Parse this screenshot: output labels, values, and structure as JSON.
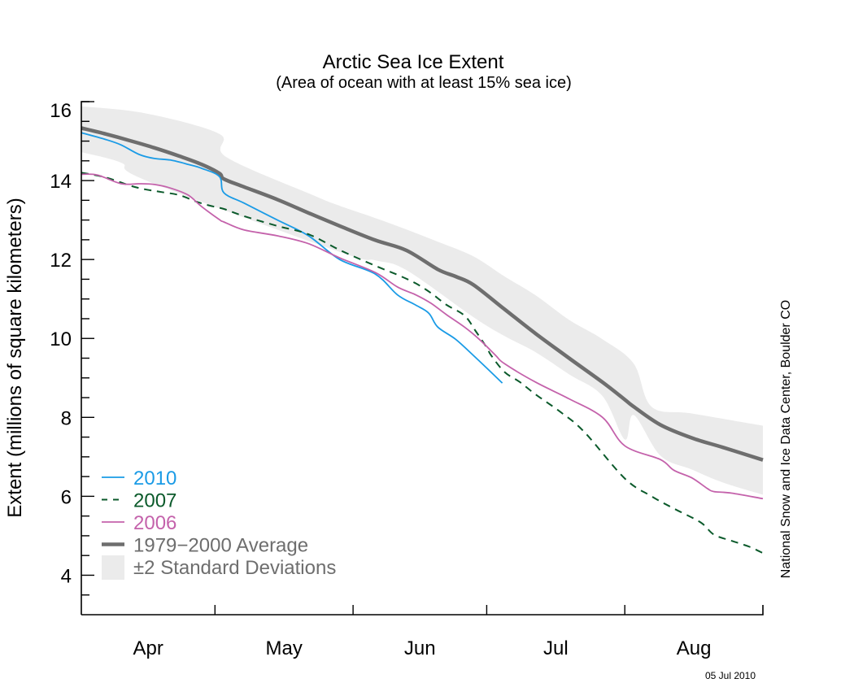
{
  "chart_data": {
    "type": "line",
    "title": "Arctic Sea Ice Extent",
    "subtitle": "(Area of ocean with at least 15% sea ice)",
    "xlabel": "",
    "ylabel": "Extent (millions of square kilometers)",
    "x_units": "days since Apr 1",
    "xlim": [
      0,
      153
    ],
    "ylim": [
      3,
      16
    ],
    "yticks_major": [
      4,
      6,
      8,
      10,
      12,
      14,
      16
    ],
    "ytick_minor_step": 0.5,
    "x_month_ticks": [
      0,
      30,
      61,
      91,
      122,
      153
    ],
    "x_month_labels": [
      {
        "label": "Apr",
        "day": 15
      },
      {
        "label": "May",
        "day": 45.5
      },
      {
        "label": "Jun",
        "day": 76
      },
      {
        "label": "Jul",
        "day": 106.5
      },
      {
        "label": "Aug",
        "day": 137.5
      }
    ],
    "grid": false,
    "legend_position": "bottom-left",
    "band": {
      "name": "±2 Standard Deviations",
      "color": "#ebebeb",
      "upper": [
        [
          0,
          15.88
        ],
        [
          14.6,
          15.7
        ],
        [
          31,
          15.18
        ],
        [
          32.5,
          14.6
        ],
        [
          52,
          13.63
        ],
        [
          58,
          13.36
        ],
        [
          66,
          13.05
        ],
        [
          73,
          12.76
        ],
        [
          80,
          12.45
        ],
        [
          88,
          12.08
        ],
        [
          95,
          11.57
        ],
        [
          102,
          11.09
        ],
        [
          109.5,
          10.47
        ],
        [
          117,
          9.98
        ],
        [
          124,
          9.36
        ],
        [
          128,
          8.27
        ],
        [
          137,
          8.1
        ],
        [
          153,
          7.79
        ]
      ],
      "lower": [
        [
          0,
          14.72
        ],
        [
          9,
          14.45
        ],
        [
          14.6,
          14.0
        ],
        [
          58,
          12.19
        ],
        [
          66,
          11.98
        ],
        [
          73,
          11.73
        ],
        [
          88,
          10.54
        ],
        [
          95,
          10.06
        ],
        [
          102,
          9.65
        ],
        [
          109.5,
          9.09
        ],
        [
          117,
          8.54
        ],
        [
          122,
          7.44
        ],
        [
          124,
          8.06
        ],
        [
          130,
          7.03
        ],
        [
          137,
          6.68
        ],
        [
          144,
          6.35
        ],
        [
          153,
          6.04
        ]
      ]
    },
    "series": [
      {
        "name": "1979−2000 Average",
        "color": "#6e6e6e",
        "style": "solid-thick",
        "points": [
          [
            0,
            15.33
          ],
          [
            5.5,
            15.18
          ],
          [
            11,
            15.01
          ],
          [
            16.4,
            14.83
          ],
          [
            22,
            14.62
          ],
          [
            27,
            14.41
          ],
          [
            31,
            14.18
          ],
          [
            32,
            14.04
          ],
          [
            36.5,
            13.84
          ],
          [
            44,
            13.52
          ],
          [
            51,
            13.18
          ],
          [
            58,
            12.85
          ],
          [
            66,
            12.49
          ],
          [
            73,
            12.23
          ],
          [
            80,
            11.75
          ],
          [
            84,
            11.57
          ],
          [
            88,
            11.36
          ],
          [
            95,
            10.74
          ],
          [
            102,
            10.12
          ],
          [
            109.5,
            9.5
          ],
          [
            117,
            8.89
          ],
          [
            122,
            8.45
          ],
          [
            124,
            8.27
          ],
          [
            130,
            7.81
          ],
          [
            137,
            7.48
          ],
          [
            144,
            7.24
          ],
          [
            153,
            6.92
          ]
        ]
      },
      {
        "name": "2010",
        "color": "#1a9be6",
        "style": "solid",
        "points": [
          [
            0,
            15.21
          ],
          [
            5.5,
            15.04
          ],
          [
            9,
            14.9
          ],
          [
            13,
            14.66
          ],
          [
            16.4,
            14.56
          ],
          [
            20,
            14.52
          ],
          [
            24,
            14.41
          ],
          [
            27,
            14.31
          ],
          [
            31,
            14.1
          ],
          [
            32,
            13.69
          ],
          [
            36.5,
            13.43
          ],
          [
            44,
            13.0
          ],
          [
            51,
            12.6
          ],
          [
            58,
            12.0
          ],
          [
            66,
            11.63
          ],
          [
            71,
            11.1
          ],
          [
            75,
            10.85
          ],
          [
            78,
            10.64
          ],
          [
            80,
            10.29
          ],
          [
            84,
            9.98
          ],
          [
            88,
            9.57
          ],
          [
            91,
            9.25
          ],
          [
            94.5,
            8.87
          ]
        ]
      },
      {
        "name": "2007",
        "color": "#0b5a2b",
        "style": "dashed",
        "points": [
          [
            0,
            14.2
          ],
          [
            5.5,
            14.08
          ],
          [
            11,
            13.87
          ],
          [
            14.6,
            13.77
          ],
          [
            18,
            13.71
          ],
          [
            22,
            13.63
          ],
          [
            26,
            13.46
          ],
          [
            29,
            13.36
          ],
          [
            32,
            13.28
          ],
          [
            36.5,
            13.1
          ],
          [
            44,
            12.85
          ],
          [
            51,
            12.64
          ],
          [
            58,
            12.24
          ],
          [
            66,
            11.84
          ],
          [
            71,
            11.61
          ],
          [
            75,
            11.4
          ],
          [
            78.5,
            11.15
          ],
          [
            82,
            10.85
          ],
          [
            86,
            10.58
          ],
          [
            88.5,
            10.19
          ],
          [
            91,
            9.77
          ],
          [
            92,
            9.57
          ],
          [
            95,
            9.15
          ],
          [
            98.5,
            8.89
          ],
          [
            102,
            8.58
          ],
          [
            108,
            8.1
          ],
          [
            113,
            7.62
          ],
          [
            122,
            6.45
          ],
          [
            128,
            6.0
          ],
          [
            133,
            5.69
          ],
          [
            139,
            5.34
          ],
          [
            142,
            5.03
          ],
          [
            146,
            4.87
          ],
          [
            150,
            4.72
          ],
          [
            153,
            4.56
          ]
        ]
      },
      {
        "name": "2006",
        "color": "#c462ab",
        "style": "solid",
        "points": [
          [
            0,
            14.16
          ],
          [
            3.6,
            14.14
          ],
          [
            9,
            13.92
          ],
          [
            13,
            13.92
          ],
          [
            16.4,
            13.9
          ],
          [
            20,
            13.81
          ],
          [
            24,
            13.63
          ],
          [
            27,
            13.34
          ],
          [
            31,
            13.01
          ],
          [
            32,
            12.95
          ],
          [
            36.5,
            12.75
          ],
          [
            44,
            12.6
          ],
          [
            51,
            12.4
          ],
          [
            58,
            12.04
          ],
          [
            66,
            11.67
          ],
          [
            71,
            11.3
          ],
          [
            75,
            11.11
          ],
          [
            78.5,
            10.89
          ],
          [
            82,
            10.6
          ],
          [
            86,
            10.29
          ],
          [
            89.5,
            9.96
          ],
          [
            93,
            9.57
          ],
          [
            95,
            9.36
          ],
          [
            102,
            8.89
          ],
          [
            109.5,
            8.47
          ],
          [
            117,
            8.0
          ],
          [
            122,
            7.28
          ],
          [
            130,
            6.93
          ],
          [
            133,
            6.66
          ],
          [
            137,
            6.47
          ],
          [
            140.5,
            6.2
          ],
          [
            142,
            6.12
          ],
          [
            146,
            6.08
          ],
          [
            153,
            5.94
          ]
        ]
      }
    ],
    "legend": [
      {
        "label": "2010",
        "color": "#1a9be6",
        "swatch": "line"
      },
      {
        "label": "2007",
        "color": "#0b5a2b",
        "swatch": "dashed"
      },
      {
        "label": "2006",
        "color": "#c462ab",
        "swatch": "line"
      },
      {
        "label": "1979−2000 Average",
        "color": "#6e6e6e",
        "swatch": "thick-line"
      },
      {
        "label": "±2 Standard Deviations",
        "color": "#ebebeb",
        "swatch": "box",
        "text_color": "#6e6e6e"
      }
    ],
    "annotations": {
      "credit": "National Snow and Ice Data Center, Boulder CO",
      "date_stamp": "05 Jul 2010"
    }
  }
}
